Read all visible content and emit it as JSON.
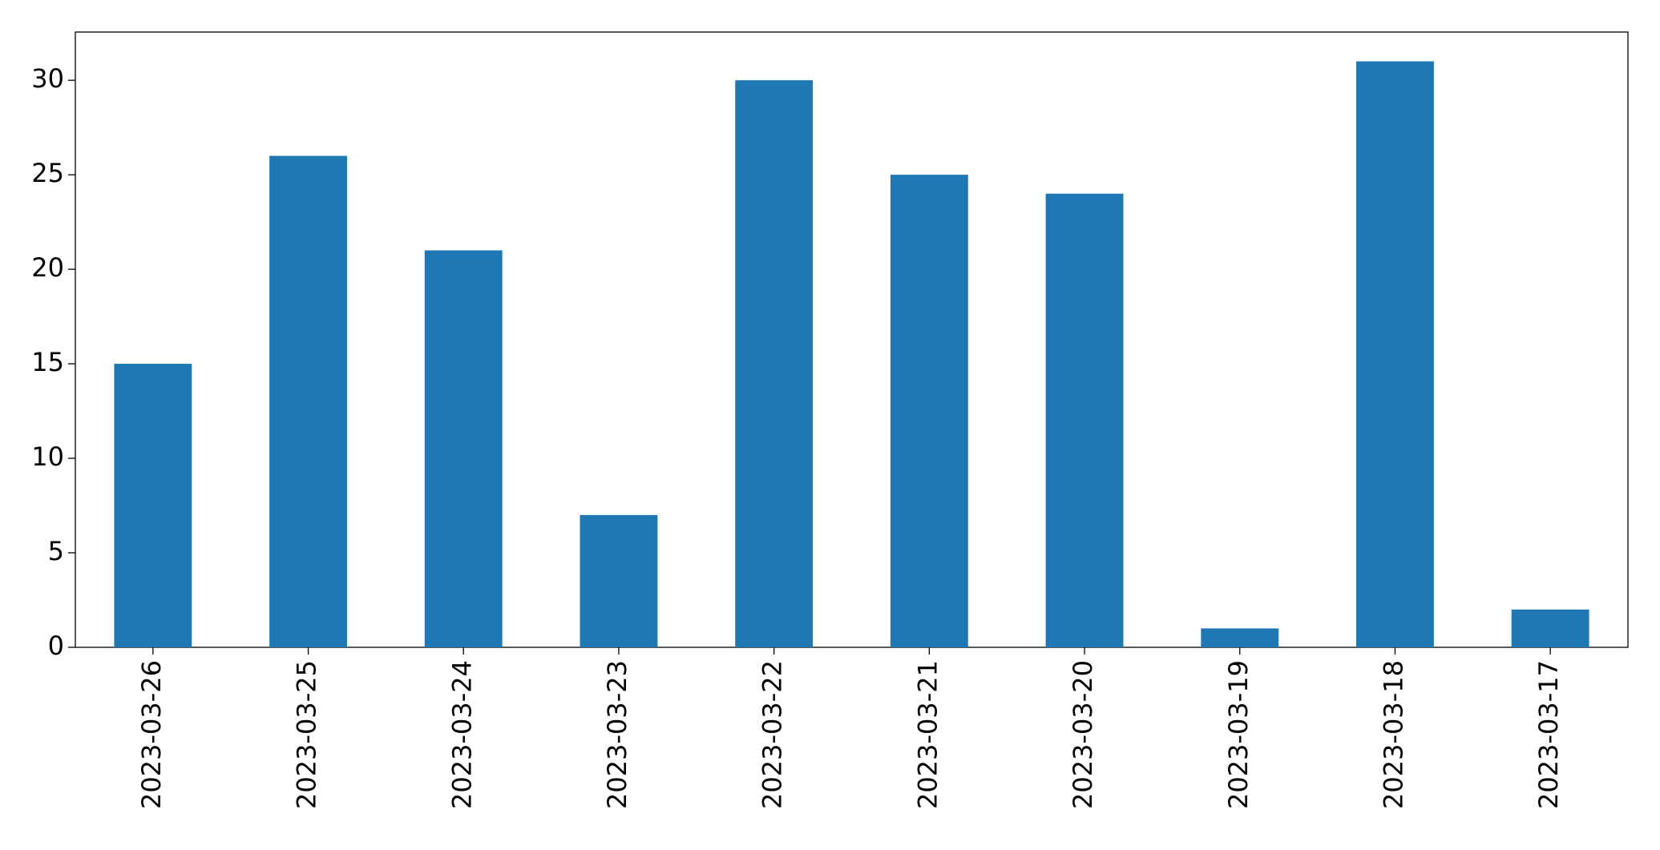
{
  "chart_data": {
    "type": "bar",
    "categories": [
      "2023-03-26",
      "2023-03-25",
      "2023-03-24",
      "2023-03-23",
      "2023-03-22",
      "2023-03-21",
      "2023-03-20",
      "2023-03-19",
      "2023-03-18",
      "2023-03-17"
    ],
    "values": [
      15,
      26,
      21,
      7,
      30,
      25,
      24,
      1,
      31,
      2
    ],
    "color": "#1f77b4",
    "ylim": [
      0,
      32.55
    ],
    "yticks": [
      0,
      5,
      10,
      15,
      20,
      25,
      30
    ],
    "grid": false
  }
}
